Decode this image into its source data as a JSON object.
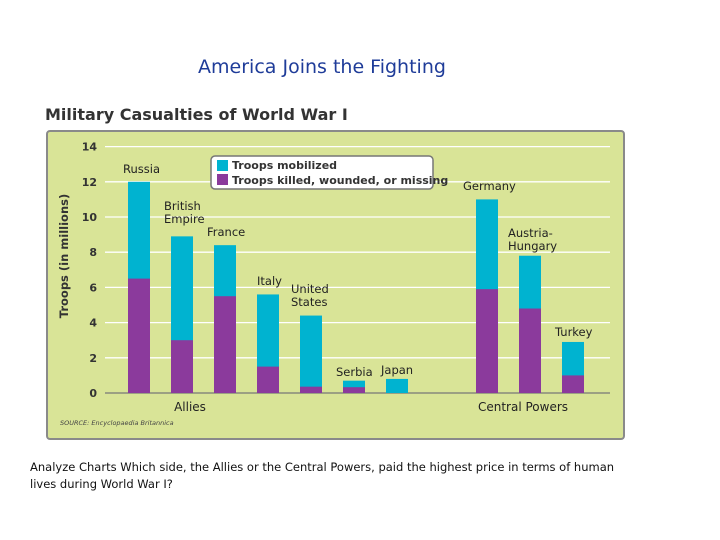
{
  "slide_title": "America Joins the Fighting",
  "caption": "Analyze Charts Which side, the Allies or the Central Powers, paid the highest price in terms of human lives during World War I?",
  "colors": {
    "mobilized": "#00b3d0",
    "killed": "#8b3a9c",
    "panel": "#d9e497",
    "border": "#8a8a8a"
  },
  "chart_data": {
    "type": "bar",
    "title": "Military Casualties of World War I",
    "ylabel": "Troops (in millions)",
    "ylim": [
      0,
      14
    ],
    "yticks": [
      0,
      2,
      4,
      6,
      8,
      10,
      12,
      14
    ],
    "grid": true,
    "legend_placement": "top-center",
    "groups": [
      "Allies",
      "Central Powers"
    ],
    "categories": [
      {
        "label": [
          "Russia"
        ],
        "group": "Allies"
      },
      {
        "label": [
          "British",
          "Empire"
        ],
        "group": "Allies"
      },
      {
        "label": [
          "France"
        ],
        "group": "Allies"
      },
      {
        "label": [
          "Italy"
        ],
        "group": "Allies"
      },
      {
        "label": [
          "United",
          "States"
        ],
        "group": "Allies"
      },
      {
        "label": [
          "Serbia"
        ],
        "group": "Allies"
      },
      {
        "label": [
          "Japan"
        ],
        "group": "Allies"
      },
      {
        "label": [
          "Germany"
        ],
        "group": "Central Powers"
      },
      {
        "label": [
          "Austria-",
          "Hungary"
        ],
        "group": "Central Powers"
      },
      {
        "label": [
          "Turkey"
        ],
        "group": "Central Powers"
      }
    ],
    "series": [
      {
        "name": "Troops mobilized",
        "values": [
          12,
          8.9,
          8.4,
          5.6,
          4.4,
          0.7,
          0.8,
          11,
          7.8,
          2.9
        ]
      },
      {
        "name": "Troops killed, wounded, or missing",
        "values": [
          6.5,
          3.0,
          5.5,
          1.5,
          0.36,
          0.33,
          0.0,
          5.9,
          4.8,
          1.0
        ]
      }
    ],
    "source": "SOURCE: Encyclopaedia Britannica"
  }
}
